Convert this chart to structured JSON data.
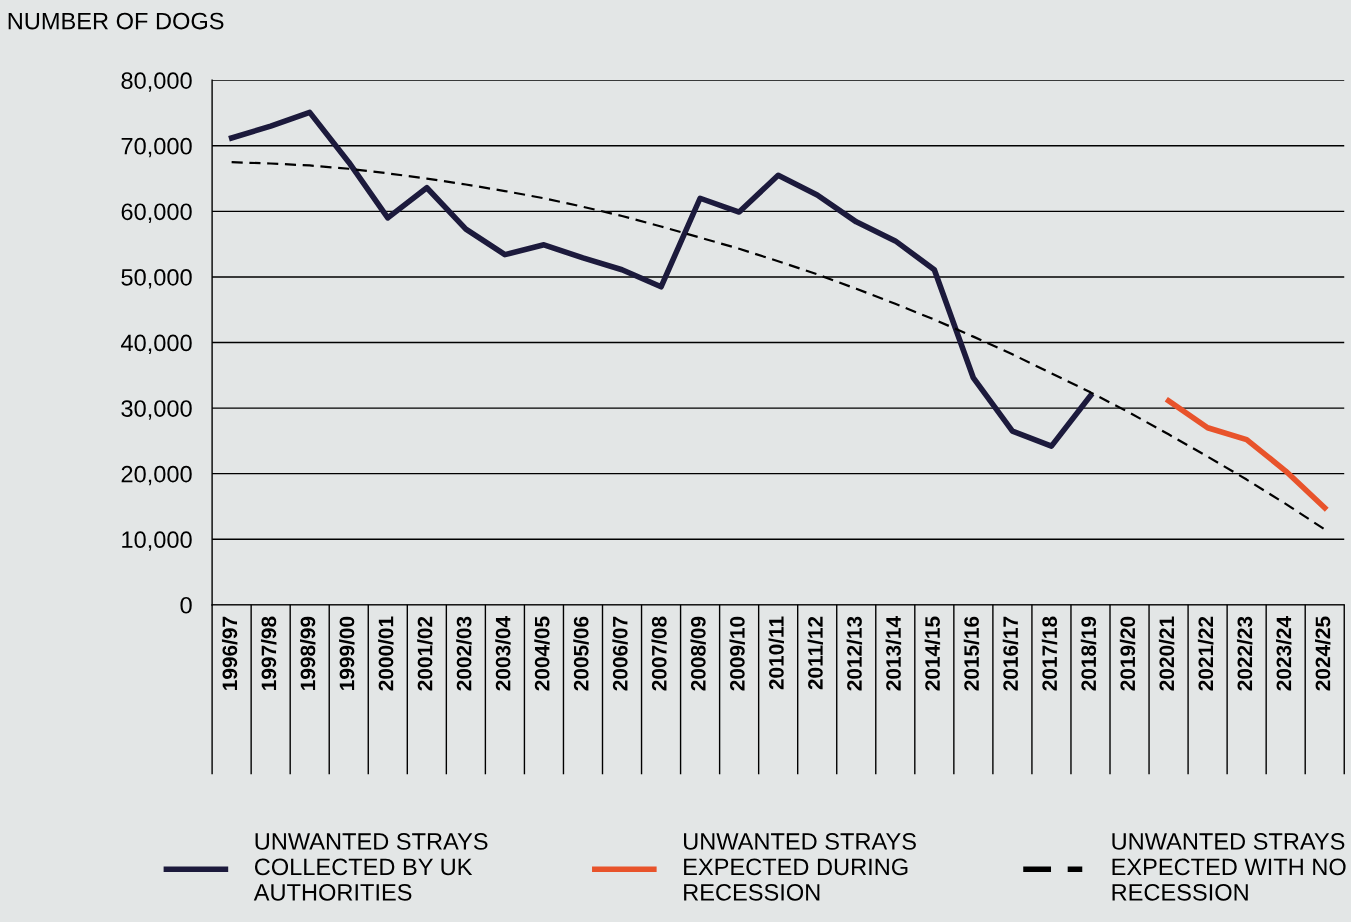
{
  "chart_data": {
    "type": "line",
    "ylabel": "NUMBER OF DOGS",
    "categories": [
      "1996/97",
      "1997/98",
      "1998/99",
      "1999/00",
      "2000/01",
      "2001/02",
      "2002/03",
      "2003/04",
      "2004/05",
      "2005/06",
      "2006/07",
      "2007/08",
      "2008/09",
      "2009/10",
      "2010/11",
      "2011/12",
      "2012/13",
      "2013/14",
      "2014/15",
      "2015/16",
      "2016/17",
      "2017/18",
      "2018/19",
      "2019/20",
      "2020/21",
      "2021/22",
      "2022/23",
      "2023/24",
      "2024/25"
    ],
    "series": [
      {
        "name": "UNWANTED STRAYS\nCOLLECTED BY UK\nAUTHORITIES",
        "color": "#1c1a3c",
        "line_style": "solid",
        "values": [
          71200,
          73000,
          75100,
          67500,
          59000,
          63600,
          57300,
          53400,
          54900,
          52900,
          51100,
          48500,
          62000,
          59900,
          65500,
          62500,
          58400,
          55500,
          51100,
          34600,
          26500,
          24200,
          31900,
          null,
          null,
          null,
          null,
          null,
          null
        ]
      },
      {
        "name": "UNWANTED STRAYS\nEXPECTED DURING\nRECESSION",
        "color": "#e8532b",
        "line_style": "solid",
        "values": [
          null,
          null,
          null,
          null,
          null,
          null,
          null,
          null,
          null,
          null,
          null,
          null,
          null,
          null,
          null,
          null,
          null,
          null,
          null,
          null,
          null,
          null,
          null,
          null,
          31100,
          27000,
          25200,
          20400,
          14800
        ]
      },
      {
        "name": "UNWANTED STRAYS\nEXPECTED WITH NO\nRECESSION",
        "color": "#000000",
        "line_style": "dashed",
        "values": [
          67500,
          67300,
          67000,
          66500,
          65800,
          65000,
          64100,
          63100,
          62000,
          60700,
          59300,
          57700,
          56000,
          54300,
          52400,
          50400,
          48200,
          45900,
          43500,
          40900,
          38200,
          35300,
          32400,
          29300,
          26000,
          22600,
          19100,
          15400,
          11500
        ]
      }
    ],
    "ylim": [
      0,
      80000
    ],
    "yticks": [
      {
        "value": 0,
        "label": "0"
      },
      {
        "value": 10000,
        "label": "10,000"
      },
      {
        "value": 20000,
        "label": "20,000"
      },
      {
        "value": 30000,
        "label": "30,000"
      },
      {
        "value": 40000,
        "label": "40,000"
      },
      {
        "value": 50000,
        "label": "50,000"
      },
      {
        "value": 60000,
        "label": "60,000"
      },
      {
        "value": 70000,
        "label": "70,000"
      },
      {
        "value": 80000,
        "label": "80,000"
      }
    ],
    "grid": "y",
    "legend": "bottom",
    "marker": "none"
  }
}
